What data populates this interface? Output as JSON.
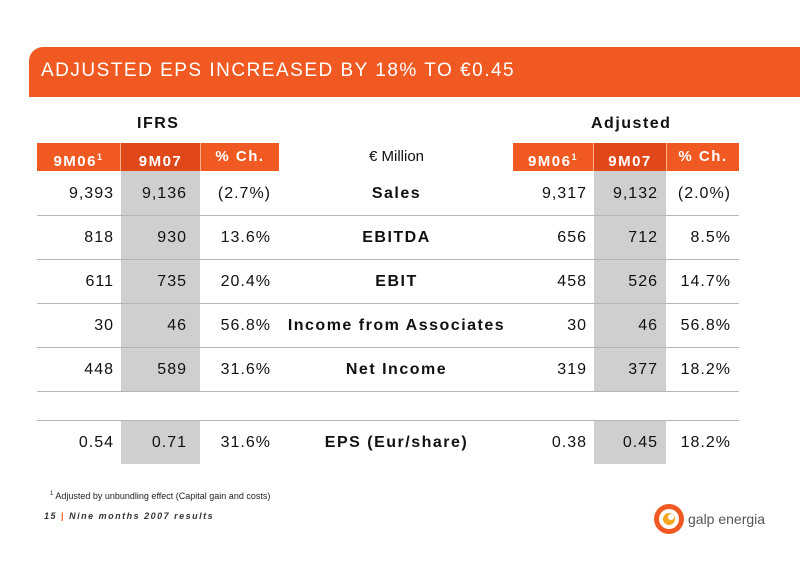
{
  "title": "ADJUSTED EPS INCREASED BY 18% TO €0.45",
  "groups": {
    "ifrs": "IFRS",
    "adjusted": "Adjusted"
  },
  "columns": {
    "ifrs": [
      {
        "label": "9M06",
        "sup": "1"
      },
      {
        "label": "9M07",
        "sup": ""
      },
      {
        "label": "% Ch.",
        "sup": ""
      }
    ],
    "middle": "€ Million",
    "adjusted": [
      {
        "label": "9M06",
        "sup": "1"
      },
      {
        "label": "9M07",
        "sup": ""
      },
      {
        "label": "% Ch.",
        "sup": ""
      }
    ]
  },
  "rows": [
    {
      "label": "Sales",
      "ifrs": [
        "9,393",
        "9,136",
        "(2.7%)"
      ],
      "adjusted": [
        "9,317",
        "9,132",
        "(2.0%)"
      ]
    },
    {
      "label": "EBITDA",
      "ifrs": [
        "818",
        "930",
        "13.6%"
      ],
      "adjusted": [
        "656",
        "712",
        "8.5%"
      ]
    },
    {
      "label": "EBIT",
      "ifrs": [
        "611",
        "735",
        "20.4%"
      ],
      "adjusted": [
        "458",
        "526",
        "14.7%"
      ]
    },
    {
      "label": "Income from Associates",
      "ifrs": [
        "30",
        "46",
        "56.8%"
      ],
      "adjusted": [
        "30",
        "46",
        "56.8%"
      ]
    },
    {
      "label": "Net Income",
      "ifrs": [
        "448",
        "589",
        "31.6%"
      ],
      "adjusted": [
        "319",
        "377",
        "18.2%"
      ]
    },
    {
      "label": "EPS (Eur/share)",
      "ifrs": [
        "0.54",
        "0.71",
        "31.6%"
      ],
      "adjusted": [
        "0.38",
        "0.45",
        "18.2%"
      ]
    }
  ],
  "footnote": {
    "sup": "1",
    "text": "Adjusted by unbundling effect (Capital gain and costs)"
  },
  "footer": {
    "page": "15",
    "text": "Nine months 2007 results"
  },
  "logo": {
    "text": "galp energia",
    "icon": "galp-logo-icon"
  },
  "colors": {
    "accent": "#f05a22",
    "shade": "#cfcfcf"
  }
}
